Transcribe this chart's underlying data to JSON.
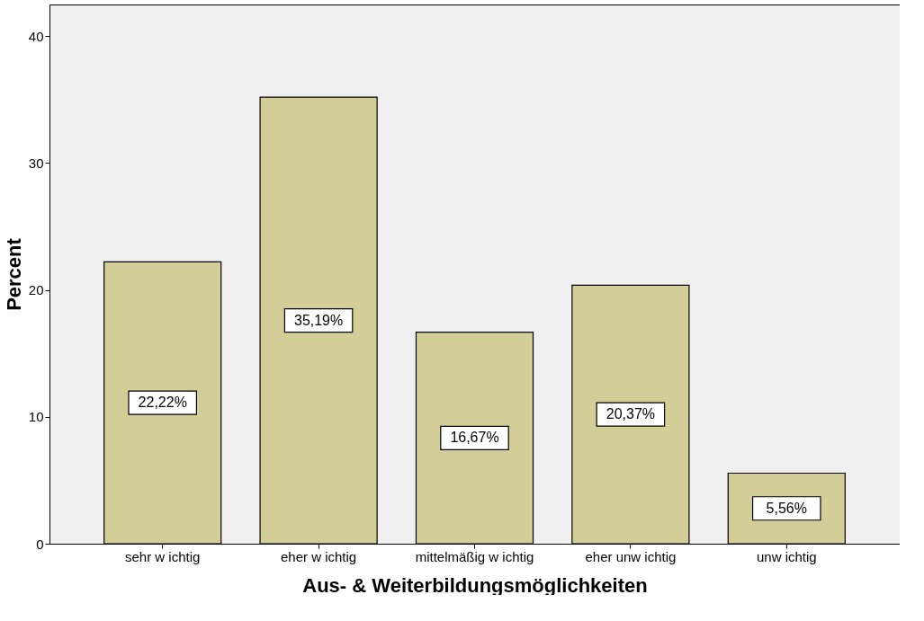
{
  "chart_data": {
    "type": "bar",
    "xlabel": "Aus- & Weiterbildungsmöglichkeiten",
    "ylabel": "Percent",
    "categories": [
      "sehr w ichtig",
      "eher w ichtig",
      "mittelmäßig w ichtig",
      "eher unw ichtig",
      "unw ichtig"
    ],
    "values": [
      22.22,
      35.19,
      16.67,
      20.37,
      5.56
    ],
    "value_labels": [
      "22,22%",
      "35,19%",
      "16,67%",
      "20,37%",
      "5,56%"
    ],
    "color": "#d3ce97",
    "ylim": [
      0,
      42.5
    ],
    "yticks": [
      0,
      10,
      20,
      30,
      40
    ],
    "grid": false
  }
}
